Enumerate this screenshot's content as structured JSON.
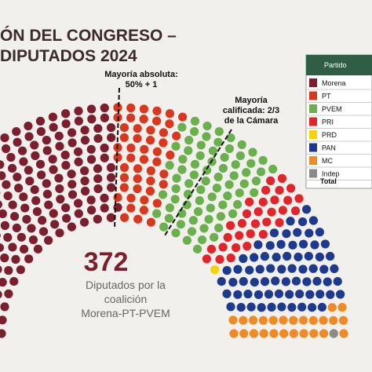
{
  "chart_data": {
    "type": "parliament",
    "title_lines": [
      "ÓN DEL CONGRESO –",
      "DIPUTADOS 2024"
    ],
    "annotations": {
      "majority": [
        "Mayoría absoluta:",
        "50% + 1"
      ],
      "qualified": [
        "Mayoría",
        "calificada: 2/3",
        "de la Cámara"
      ]
    },
    "coalition_total": 372,
    "coalition_caption": [
      "Diputados por la",
      "coalición",
      "Morena-PT-PVEM"
    ],
    "table_header": "Partido",
    "table_total": "Total",
    "series": [
      {
        "name": "Morena",
        "color": "#7b1e2e",
        "values": [
          248
        ]
      },
      {
        "name": "PT",
        "color": "#d9381e",
        "values": [
          49
        ]
      },
      {
        "name": "PVEM",
        "color": "#6ab04c",
        "values": [
          75
        ]
      },
      {
        "name": "PRI",
        "color": "#e3242b",
        "values": [
          31
        ]
      },
      {
        "name": "PRD",
        "color": "#f5d20a",
        "values": [
          1
        ]
      },
      {
        "name": "PAN",
        "color": "#1d3a8f",
        "values": [
          70
        ]
      },
      {
        "name": "MC",
        "color": "#f08a24",
        "values": [
          25
        ]
      },
      {
        "name": "Indep",
        "color": "#8a8a8a",
        "values": [
          1
        ]
      }
    ]
  }
}
